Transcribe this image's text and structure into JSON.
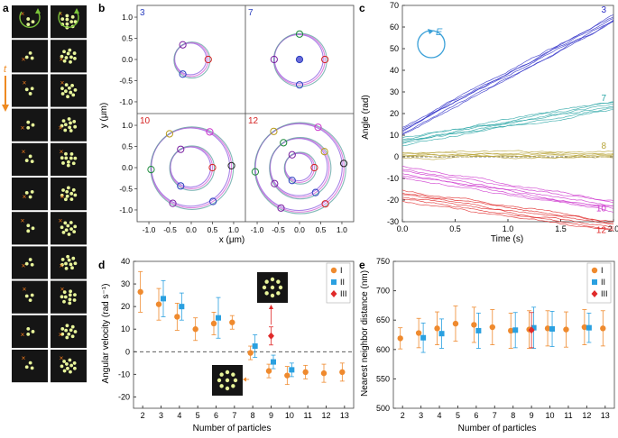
{
  "panels": {
    "a": {
      "label": "a",
      "time_label": "t",
      "frames": 11,
      "colors": {
        "background": "#151515",
        "particle": "#e8f59a",
        "marker": "#ee7a1e",
        "arrow": "#7cc43a",
        "time_arrow": "#ee8a22"
      }
    },
    "b": {
      "label": "b",
      "xlabel": "x (μm)",
      "ylabel": "y (μm)",
      "xticks": [
        -1.0,
        -0.5,
        0.0,
        0.5,
        1.0
      ],
      "yticks": [
        -1.0,
        -0.5,
        0.0,
        0.5,
        1.0
      ],
      "subplots": [
        {
          "tag": "3",
          "color": "#2b3fbf",
          "radii": [
            0.4
          ]
        },
        {
          "tag": "7",
          "color": "#2b3fbf",
          "radii": [
            0.6
          ]
        },
        {
          "tag": "10",
          "color": "#d42121",
          "radii": [
            0.5,
            0.95
          ]
        },
        {
          "tag": "12",
          "color": "#d42121",
          "radii": [
            0.35,
            0.7,
            1.05
          ]
        }
      ]
    }
  },
  "chart_data": [
    {
      "panel": "c",
      "type": "line",
      "xlabel": "Time (s)",
      "ylabel": "Angle (rad)",
      "xlim": [
        0,
        2.0
      ],
      "ylim": [
        -30,
        70
      ],
      "xticks": [
        "0.0",
        "0.5",
        "1.0",
        "1.5",
        "2.0"
      ],
      "yticks": [
        -30,
        -20,
        -10,
        0,
        10,
        20,
        30,
        40,
        50,
        60,
        70
      ],
      "field_label": "E",
      "series": [
        {
          "name": "3",
          "color": "#2f2fc8",
          "start": 12,
          "end": 64,
          "spread": 3.5
        },
        {
          "name": "7",
          "color": "#2aa6a6",
          "start": 7,
          "end": 24,
          "spread": 3.5
        },
        {
          "name": "8",
          "color": "#b8a53a",
          "start": 1,
          "end": 1,
          "spread": 2.5
        },
        {
          "name": "10",
          "color": "#cc33cc",
          "start": -7,
          "end": -23,
          "spread": 5
        },
        {
          "name": "12",
          "color": "#e02828",
          "start": -18,
          "end": -32,
          "spread": 5
        }
      ]
    },
    {
      "panel": "d",
      "type": "scatter",
      "xlabel": "Number of particles",
      "ylabel": "Angular velocity (rad s⁻¹)",
      "xlim": [
        1.5,
        13.5
      ],
      "ylim": [
        -25,
        40
      ],
      "xticks": [
        2,
        3,
        4,
        5,
        6,
        7,
        8,
        9,
        10,
        11,
        12,
        13
      ],
      "yticks": [
        -20,
        -10,
        0,
        10,
        20,
        30,
        40
      ],
      "legend": [
        "I",
        "II",
        "III"
      ],
      "series": [
        {
          "name": "I",
          "marker": "circle",
          "color": "#ef8a2e",
          "x": [
            2,
            3,
            4,
            5,
            6,
            7,
            8,
            9,
            10,
            11,
            12,
            13
          ],
          "y": [
            26.5,
            21,
            15.5,
            10,
            12.5,
            13,
            -0.5,
            -8.5,
            -10.5,
            -9,
            -9.5,
            -9
          ],
          "err": [
            9,
            7,
            6,
            5,
            5,
            3,
            3,
            3,
            4,
            3,
            4,
            4
          ]
        },
        {
          "name": "II",
          "marker": "square",
          "color": "#2aa0e0",
          "x": [
            3,
            4,
            6,
            8,
            9,
            10
          ],
          "y": [
            23.5,
            20,
            15,
            2.5,
            -4.5,
            -8
          ],
          "err": [
            8,
            6,
            9,
            5,
            3,
            3
          ]
        },
        {
          "name": "III",
          "marker": "diamond",
          "color": "#e02a2a",
          "x": [
            9
          ],
          "y": [
            7
          ],
          "err": [
            4
          ]
        }
      ]
    },
    {
      "panel": "e",
      "type": "scatter",
      "xlabel": "Number of particles",
      "ylabel": "Nearest neighbor distance (nm)",
      "xlim": [
        1.5,
        13.5
      ],
      "ylim": [
        500,
        750
      ],
      "xticks": [
        2,
        3,
        4,
        5,
        6,
        7,
        8,
        9,
        10,
        11,
        12,
        13
      ],
      "yticks": [
        500,
        550,
        600,
        650,
        700,
        750
      ],
      "legend": [
        "I",
        "II",
        "III"
      ],
      "series": [
        {
          "name": "I",
          "marker": "circle",
          "color": "#ef8a2e",
          "x": [
            2,
            3,
            4,
            5,
            6,
            7,
            8,
            9,
            10,
            11,
            12,
            13
          ],
          "y": [
            619,
            628,
            636,
            644,
            642,
            638,
            632,
            634,
            636,
            634,
            638,
            636
          ],
          "err": [
            18,
            25,
            28,
            30,
            30,
            30,
            30,
            32,
            30,
            30,
            30,
            30
          ]
        },
        {
          "name": "II",
          "marker": "square",
          "color": "#2aa0e0",
          "x": [
            3,
            4,
            6,
            8,
            9,
            10,
            12
          ],
          "y": [
            620,
            627,
            632,
            633,
            637,
            635,
            637
          ],
          "err": [
            25,
            25,
            30,
            30,
            35,
            30,
            25
          ]
        },
        {
          "name": "III",
          "marker": "diamond",
          "color": "#e02a2a",
          "x": [
            9
          ],
          "y": [
            633
          ],
          "err": [
            30
          ]
        }
      ]
    }
  ]
}
